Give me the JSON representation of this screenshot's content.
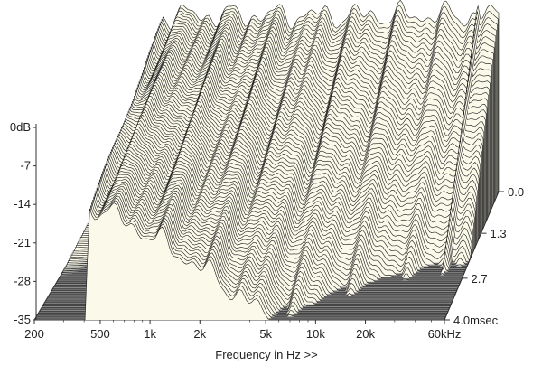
{
  "chart_data": {
    "type": "waterfall",
    "xlabel": "Frequency in Hz >>",
    "x_scale": "log",
    "x_ticks": [
      {
        "value": 200,
        "label": "200"
      },
      {
        "value": 500,
        "label": "500"
      },
      {
        "value": 1000,
        "label": "1k"
      },
      {
        "value": 2000,
        "label": "2k"
      },
      {
        "value": 5000,
        "label": "5k"
      },
      {
        "value": 10000,
        "label": "10k"
      },
      {
        "value": 20000,
        "label": "20k"
      },
      {
        "value": 60000,
        "label": "60kHz"
      }
    ],
    "xlim": [
      200,
      60000
    ],
    "y_ticks": [
      {
        "value": 0,
        "label": "0dB"
      },
      {
        "value": -7,
        "label": "-7"
      },
      {
        "value": -14,
        "label": "-14"
      },
      {
        "value": -21,
        "label": "-21"
      },
      {
        "value": -28,
        "label": "-28"
      },
      {
        "value": -35,
        "label": "-35"
      }
    ],
    "ylim": [
      -35,
      0
    ],
    "z_ticks": [
      {
        "value": 0.0,
        "label": "0.0"
      },
      {
        "value": 1.3,
        "label": "1.3"
      },
      {
        "value": 2.7,
        "label": "2.7"
      },
      {
        "value": 4.0,
        "label": "4.0msec"
      }
    ],
    "zlim": [
      0,
      4.0
    ],
    "slices": 75,
    "colors": {
      "surface": "#fbfaea",
      "line": "#1a1a1a",
      "floor": "#8a8a8a",
      "floor_line": "#5e5e5e",
      "axis": "#333333"
    }
  }
}
